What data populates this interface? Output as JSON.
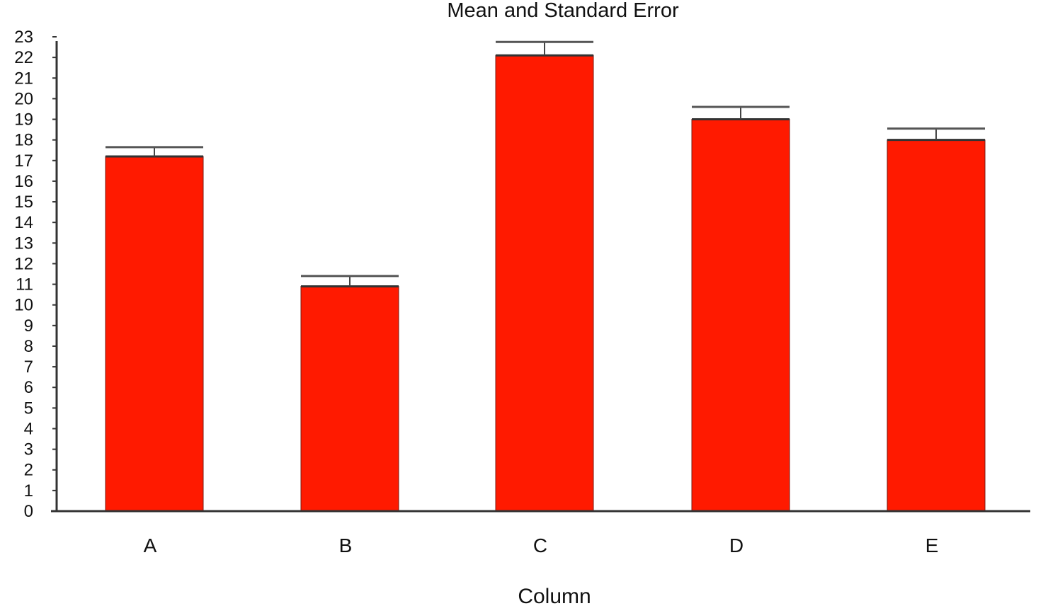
{
  "chart_data": {
    "type": "bar",
    "title": "Mean and Standard Error",
    "xlabel": "Column",
    "ylabel": "",
    "categories": [
      "A",
      "B",
      "C",
      "D",
      "E"
    ],
    "values": [
      17.2,
      10.9,
      22.1,
      19.0,
      18.0
    ],
    "error_upper": [
      17.65,
      11.4,
      22.75,
      19.6,
      18.55
    ],
    "ylim": [
      0,
      23
    ],
    "yticks": [
      "0",
      "1",
      "2",
      "3",
      "4",
      "5",
      "6",
      "7",
      "8",
      "9",
      "10",
      "11",
      "12",
      "13",
      "14",
      "15",
      "16",
      "17",
      "18",
      "19",
      "20",
      "21",
      "22",
      "23"
    ],
    "bar_color": "#ff1a00",
    "grid": false,
    "legend": "none"
  }
}
